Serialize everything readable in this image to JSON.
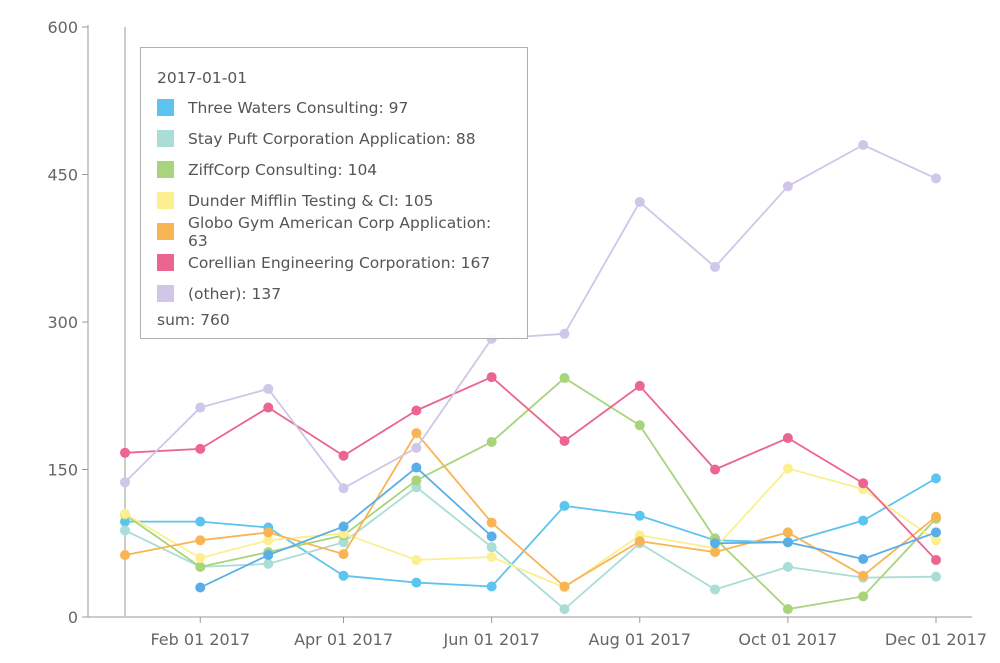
{
  "chart_data": {
    "type": "line",
    "x": [
      "2017-01-01",
      "2017-02-01",
      "2017-03-01",
      "2017-04-01",
      "2017-05-01",
      "2017-06-01",
      "2017-07-01",
      "2017-08-01",
      "2017-09-01",
      "2017-10-01",
      "2017-11-01",
      "2017-12-01"
    ],
    "x_tick_labels": [
      "Feb 01 2017",
      "Apr 01 2017",
      "Jun 01 2017",
      "Aug 01 2017",
      "Oct 01 2017",
      "Dec 01 2017"
    ],
    "x_tick_dates": [
      "2017-02-01",
      "2017-04-01",
      "2017-06-01",
      "2017-08-01",
      "2017-10-01",
      "2017-12-01"
    ],
    "y_ticks": [
      0,
      150,
      300,
      450,
      600
    ],
    "ylim": [
      0,
      600
    ],
    "grid": false,
    "series": [
      {
        "name": "Three Waters Consulting",
        "color": "#5bc4ef",
        "values": [
          97,
          97,
          91,
          42,
          35,
          31,
          113,
          103,
          78,
          76,
          98,
          141
        ]
      },
      {
        "name": "Stay Puft Corporation Application",
        "color": "#a9ddd6",
        "values": [
          88,
          51,
          54,
          76,
          132,
          71,
          8,
          75,
          28,
          51,
          40,
          41
        ]
      },
      {
        "name": "ZiffCorp Consulting",
        "color": "#a8d57b",
        "values": [
          104,
          51,
          66,
          83,
          139,
          178,
          243,
          195,
          80,
          8,
          21,
          100
        ]
      },
      {
        "name": "Dunder Mifflin Testing & CI",
        "color": "#fcef8f",
        "values": [
          105,
          60,
          78,
          85,
          58,
          61,
          30,
          83,
          70,
          151,
          130,
          78
        ]
      },
      {
        "name": "Globo Gym American Corp Application",
        "color": "#f9b554",
        "values": [
          63,
          78,
          86,
          64,
          187,
          96,
          31,
          77,
          66,
          86,
          42,
          102
        ]
      },
      {
        "name": "Corellian Engineering Corporation",
        "color": "#ec6490",
        "values": [
          167,
          171,
          213,
          164,
          210,
          244,
          179,
          235,
          150,
          182,
          136,
          58
        ]
      },
      {
        "name": "(other)",
        "color": "#cfc6e8",
        "values": [
          137,
          213,
          232,
          131,
          172,
          283,
          288,
          422,
          356,
          438,
          480,
          446
        ]
      },
      {
        "name": "",
        "color": "#5aaee8",
        "values": [
          null,
          30,
          63,
          92,
          152,
          82,
          null,
          null,
          75,
          76,
          59,
          86
        ]
      }
    ],
    "tooltip": {
      "date": "2017-01-01",
      "items": [
        {
          "label": "Three Waters Consulting: 97",
          "color": "#5bc4ef"
        },
        {
          "label": "Stay Puft Corporation Application: 88",
          "color": "#a9ddd6"
        },
        {
          "label": "ZiffCorp Consulting: 104",
          "color": "#a8d57b"
        },
        {
          "label": "Dunder Mifflin Testing & CI: 105",
          "color": "#fcef8f"
        },
        {
          "label": "Globo Gym American Corp Application: 63",
          "color": "#f9b554"
        },
        {
          "label": "Corellian Engineering Corporation: 167",
          "color": "#ec6490"
        },
        {
          "label": "(other): 137",
          "color": "#cfc6e8"
        }
      ],
      "sum": "sum: 760"
    }
  }
}
